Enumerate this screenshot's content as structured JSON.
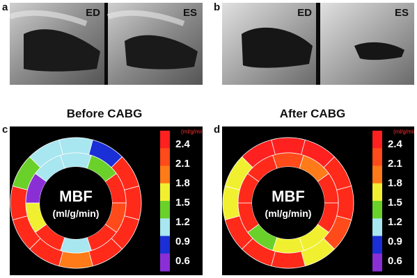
{
  "panels": {
    "a": {
      "label": "a",
      "frames": [
        "ED",
        "ES"
      ]
    },
    "b": {
      "label": "b",
      "frames": [
        "ED",
        "ES"
      ]
    },
    "c": {
      "label": "c",
      "title": "Before CABG",
      "center_line1": "MBF",
      "center_line2": "(ml/g/min)"
    },
    "d": {
      "label": "d",
      "title": "After CABG",
      "center_line1": "MBF",
      "center_line2": "(ml/g/min)"
    }
  },
  "colorbar": {
    "unit": "(ml/g/min)",
    "ticks": [
      "2.4",
      "2.1",
      "1.8",
      "1.5",
      "1.2",
      "0.9",
      "0.6"
    ],
    "colors": [
      "#ff2020",
      "#ff4a1a",
      "#ff7a18",
      "#f0f030",
      "#6ad12a",
      "#a8e6f0",
      "#1b2fd6",
      "#8a2fd6"
    ]
  },
  "segment_colors": {
    "before": {
      "outer": [
        "#a8e6f0",
        "#1b2fd6",
        "#ff2a1a",
        "#ff2a1a",
        "#ff2a1a",
        "#ff2a1a",
        "#ff7a18",
        "#ff2a1a",
        "#ff2a1a",
        "#ff2a1a",
        "#6ad12a",
        "#a8e6f0"
      ],
      "inner": [
        "#a8e6f0",
        "#6ad12a",
        "#ff2a1a",
        "#ff4a1a",
        "#ff2a1a",
        "#a8e6f0",
        "#ff2a1a",
        "#f0f030",
        "#8a2fd6",
        "#a8e6f0"
      ]
    },
    "after": {
      "outer": [
        "#ff2020",
        "#ff2020",
        "#ff2a1a",
        "#ff2a1a",
        "#ff4a1a",
        "#f0f030",
        "#ff2a1a",
        "#ff2a1a",
        "#ff2a1a",
        "#f0f030",
        "#f0f030",
        "#ff2020"
      ],
      "inner": [
        "#ff4a1a",
        "#ff7a18",
        "#ff2a1a",
        "#ff2a1a",
        "#f0f030",
        "#f0f030",
        "#6ad12a",
        "#ff2a1a",
        "#ff2a1a",
        "#ff2a1a"
      ]
    }
  }
}
